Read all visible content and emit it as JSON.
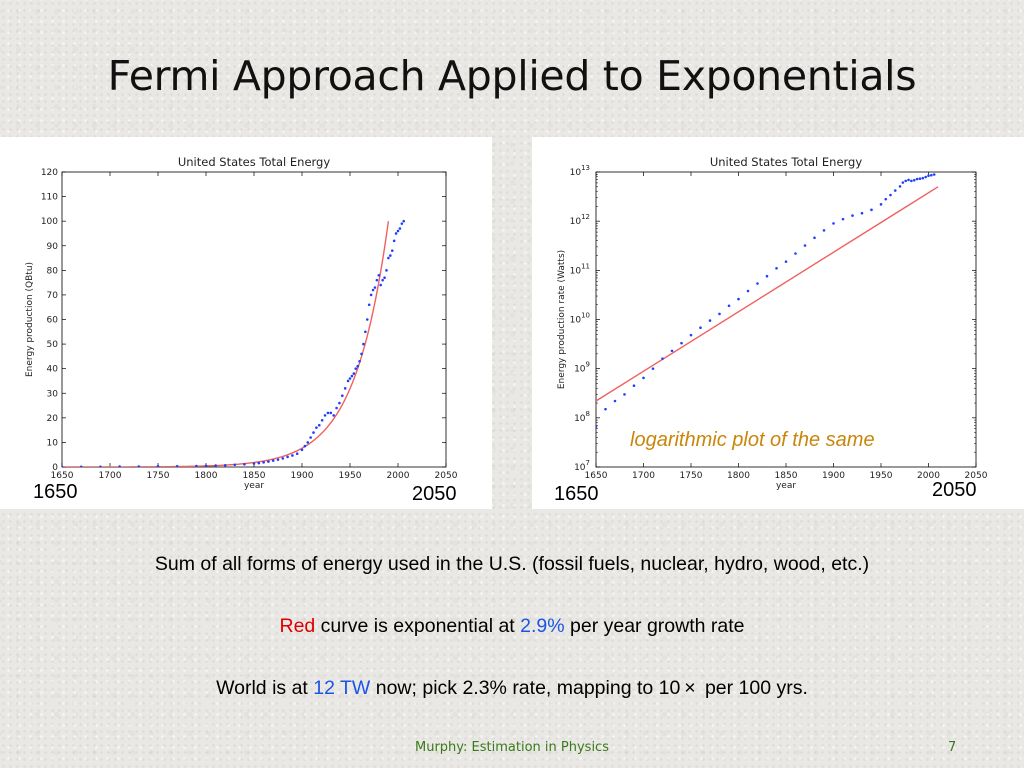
{
  "slide": {
    "title": "Fermi Approach Applied to Exponentials",
    "footer_credit": "Murphy: Estimation in Physics",
    "page_number": "7"
  },
  "captions": {
    "line1": "Sum of all forms of energy used in the U.S. (fossil fuels, nuclear, hydro, wood, etc.)",
    "line2_red": "Red",
    "line2_mid": " curve is exponential at ",
    "line2_rate": "2.9%",
    "line2_end": " per year growth rate",
    "line3_start": "World is at ",
    "line3_tw": "12 TW",
    "line3_end": " now; pick 2.3% rate, mapping to 10 ×  per 100 yrs."
  },
  "overlays": {
    "left_start": "1650",
    "left_end": "2050",
    "right_start": "1650",
    "right_end": "2050",
    "annotation": "logarithmic plot of the same"
  },
  "colors": {
    "fit_curve": "#f06060",
    "data_points": "#1f3fff",
    "caption_red": "#e00000",
    "caption_blue": "#1a55e6",
    "annotation": "#c8860a",
    "footer": "#3a7a1a"
  },
  "chart_data": [
    {
      "type": "scatter",
      "title": "United States Total Energy",
      "xlabel": "year",
      "ylabel": "Energy production (QBtu)",
      "xlim": [
        1650,
        2050
      ],
      "ylim": [
        0,
        120
      ],
      "x_ticks": [
        1650,
        1700,
        1750,
        1800,
        1850,
        1900,
        1950,
        2000,
        2050
      ],
      "y_ticks": [
        0,
        10,
        20,
        30,
        40,
        50,
        60,
        70,
        80,
        90,
        100,
        110,
        120
      ],
      "grid": false,
      "series": [
        {
          "kind": "points",
          "x": [
            1650,
            1670,
            1690,
            1710,
            1730,
            1750,
            1770,
            1790,
            1800,
            1810,
            1820,
            1830,
            1840,
            1850,
            1855,
            1860,
            1865,
            1870,
            1875,
            1880,
            1885,
            1890,
            1895,
            1900,
            1903,
            1906,
            1909,
            1912,
            1915,
            1918,
            1921,
            1924,
            1927,
            1930,
            1933,
            1936,
            1939,
            1942,
            1945,
            1948,
            1950,
            1952,
            1954,
            1956,
            1958,
            1960,
            1962,
            1964,
            1966,
            1968,
            1970,
            1972,
            1974,
            1976,
            1978,
            1980,
            1982,
            1984,
            1986,
            1988,
            1990,
            1992,
            1994,
            1996,
            1998,
            2000,
            2002,
            2004,
            2006
          ],
          "values": [
            0.1,
            0.1,
            0.1,
            0.2,
            0.2,
            0.3,
            0.3,
            0.4,
            0.5,
            0.6,
            0.7,
            0.9,
            1.1,
            1.4,
            1.6,
            1.9,
            2.2,
            2.6,
            3.0,
            3.5,
            4.1,
            4.7,
            5.4,
            7.0,
            8.5,
            10,
            12,
            14,
            16,
            17,
            19,
            21,
            22,
            22,
            21,
            24,
            26,
            29,
            32,
            35,
            36,
            37,
            38,
            40,
            41,
            43,
            46,
            50,
            55,
            60,
            66,
            70,
            72,
            73,
            76,
            78,
            74,
            76,
            77,
            80,
            85,
            86,
            88,
            92,
            95,
            96,
            97,
            99,
            100
          ]
        },
        {
          "kind": "fit",
          "rate": "2.9%",
          "x_range": [
            1650,
            1990
          ],
          "y_at_end": 100
        }
      ]
    },
    {
      "type": "scatter",
      "title": "United States Total Energy",
      "xlabel": "year",
      "ylabel": "Energy production rate (Watts)",
      "xlim": [
        1650,
        2050
      ],
      "ylim_exp": [
        7,
        13
      ],
      "log_scale_y": true,
      "x_ticks": [
        1650,
        1700,
        1750,
        1800,
        1850,
        1900,
        1950,
        2000,
        2050
      ],
      "y_ticks_exp": [
        7,
        8,
        9,
        10,
        11,
        12,
        13
      ],
      "grid": false,
      "series": [
        {
          "kind": "points",
          "x": [
            1650,
            1660,
            1670,
            1680,
            1690,
            1700,
            1710,
            1720,
            1730,
            1740,
            1750,
            1760,
            1770,
            1780,
            1790,
            1800,
            1810,
            1820,
            1830,
            1840,
            1850,
            1860,
            1870,
            1880,
            1890,
            1900,
            1910,
            1920,
            1930,
            1940,
            1950,
            1955,
            1960,
            1965,
            1970,
            1973,
            1976,
            1979,
            1982,
            1985,
            1988,
            1991,
            1994,
            1997,
            2000,
            2003,
            2006
          ],
          "values": [
            66000000.0,
            150000000.0,
            220000000.0,
            300000000.0,
            450000000.0,
            650000000.0,
            1000000000.0,
            1600000000.0,
            2300000000.0,
            3300000000.0,
            4800000000.0,
            6800000000.0,
            9500000000.0,
            13000000000.0,
            19000000000.0,
            26000000000.0,
            38000000000.0,
            54000000000.0,
            76000000000.0,
            110000000000.0,
            150000000000.0,
            220000000000.0,
            320000000000.0,
            460000000000.0,
            650000000000.0,
            900000000000.0,
            1100000000000.0,
            1300000000000.0,
            1450000000000.0,
            1700000000000.0,
            2200000000000.0,
            2800000000000.0,
            3400000000000.0,
            4200000000000.0,
            5100000000000.0,
            6100000000000.0,
            6600000000000.0,
            6900000000000.0,
            6600000000000.0,
            6800000000000.0,
            7200000000000.0,
            7300000000000.0,
            7500000000000.0,
            7900000000000.0,
            8400000000000.0,
            8600000000000.0,
            8900000000000.0
          ]
        },
        {
          "kind": "fit",
          "rate": "2.9%",
          "x_range": [
            1650,
            2010
          ],
          "y_range": [
            220000000.0,
            5000000000000.0
          ]
        }
      ]
    }
  ]
}
